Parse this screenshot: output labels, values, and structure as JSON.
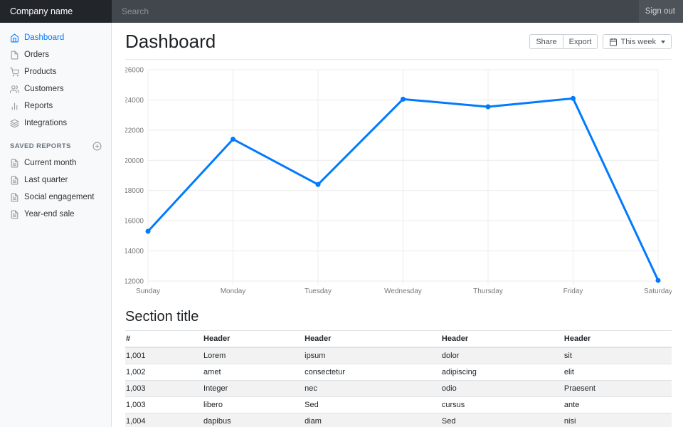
{
  "navbar": {
    "brand": "Company name",
    "search_placeholder": "Search",
    "sign_out": "Sign out"
  },
  "sidebar": {
    "items": [
      {
        "label": "Dashboard",
        "icon": "home",
        "active": true
      },
      {
        "label": "Orders",
        "icon": "file",
        "active": false
      },
      {
        "label": "Products",
        "icon": "shopping-cart",
        "active": false
      },
      {
        "label": "Customers",
        "icon": "users",
        "active": false
      },
      {
        "label": "Reports",
        "icon": "bar-chart",
        "active": false
      },
      {
        "label": "Integrations",
        "icon": "layers",
        "active": false
      }
    ],
    "saved_reports": {
      "heading": "SAVED REPORTS",
      "add_icon": "plus-circle",
      "items": [
        {
          "label": "Current month",
          "icon": "file-text"
        },
        {
          "label": "Last quarter",
          "icon": "file-text"
        },
        {
          "label": "Social engagement",
          "icon": "file-text"
        },
        {
          "label": "Year-end sale",
          "icon": "file-text"
        }
      ]
    }
  },
  "main": {
    "title": "Dashboard",
    "toolbar": {
      "share_label": "Share",
      "export_label": "Export",
      "period_label": "This week",
      "period_icon": "calendar"
    },
    "section_title": "Section title"
  },
  "chart_data": {
    "type": "line",
    "x": [
      "Sunday",
      "Monday",
      "Tuesday",
      "Wednesday",
      "Thursday",
      "Friday",
      "Saturday"
    ],
    "values": [
      15300,
      21400,
      18400,
      24050,
      23550,
      24100,
      12050
    ],
    "title": "",
    "xlabel": "",
    "ylabel": "",
    "ylim": [
      12000,
      26000
    ],
    "ytick_step": 2000,
    "grid": true,
    "legend": "none",
    "line_color": "#007bff",
    "point_color": "#007bff"
  },
  "table": {
    "columns": [
      "#",
      "Header",
      "Header",
      "Header",
      "Header"
    ],
    "rows": [
      [
        "1,001",
        "Lorem",
        "ipsum",
        "dolor",
        "sit"
      ],
      [
        "1,002",
        "amet",
        "consectetur",
        "adipiscing",
        "elit"
      ],
      [
        "1,003",
        "Integer",
        "nec",
        "odio",
        "Praesent"
      ],
      [
        "1,003",
        "libero",
        "Sed",
        "cursus",
        "ante"
      ],
      [
        "1,004",
        "dapibus",
        "diam",
        "Sed",
        "nisi"
      ]
    ]
  },
  "colors": {
    "accent": "#007bff",
    "navbar_bg": "#4d5358",
    "navbar_brand_bg": "#22262a",
    "search_bg": "#42474d",
    "sidebar_bg": "#f8f9fa",
    "grid_line": "#ececec",
    "stripe": "#f2f2f2"
  }
}
